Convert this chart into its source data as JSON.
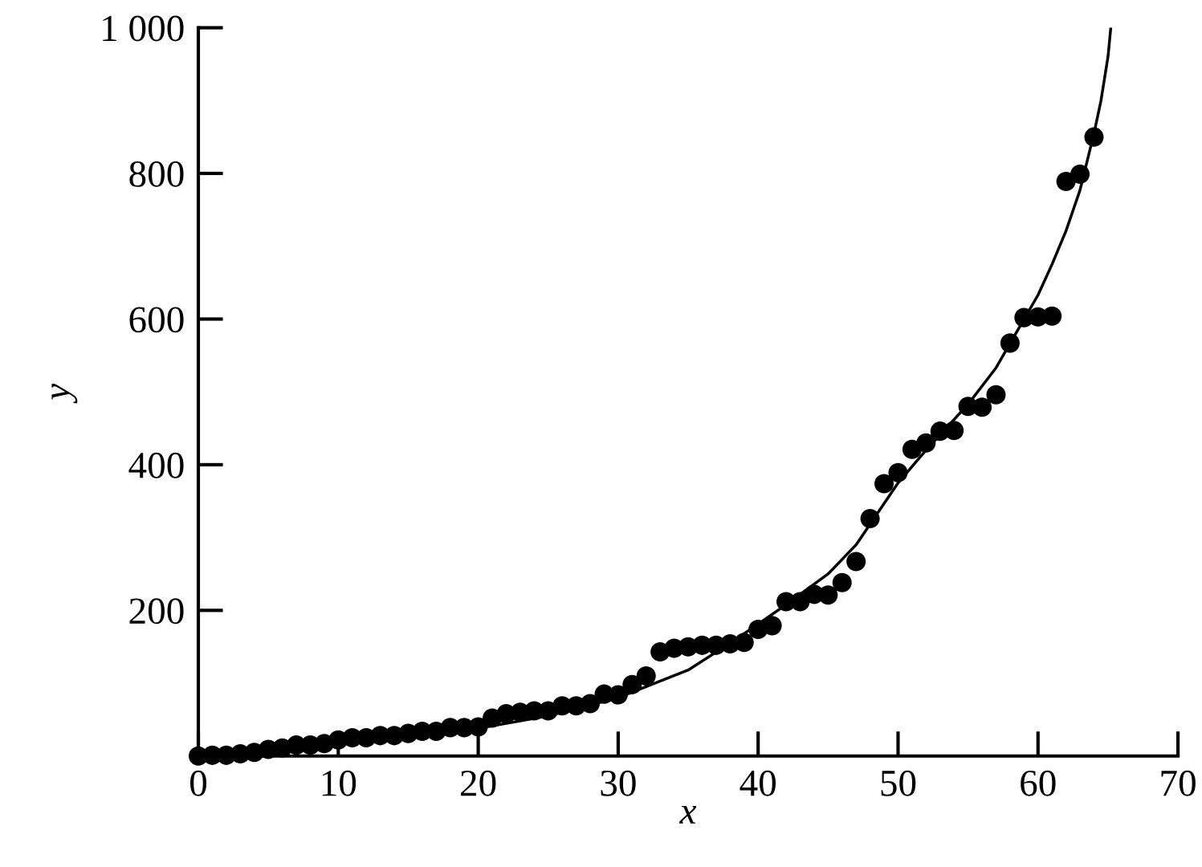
{
  "chart_data": {
    "type": "scatter",
    "xlabel": "x",
    "ylabel": "y",
    "xlim": [
      0,
      70
    ],
    "ylim": [
      0,
      1000
    ],
    "xticks": [
      0,
      10,
      20,
      30,
      40,
      50,
      60,
      70
    ],
    "yticks": [
      200,
      400,
      600,
      800,
      {
        "value": 1000,
        "label": "1 000"
      }
    ],
    "grid": false,
    "series": [
      {
        "color": "#000000",
        "marker": "circle",
        "x": [
          0,
          1,
          2,
          3,
          4,
          5,
          6,
          7,
          8,
          9,
          10,
          11,
          12,
          13,
          14,
          15,
          16,
          17,
          18,
          19,
          20,
          21,
          22,
          23,
          24,
          25,
          26,
          27,
          28,
          29,
          30,
          31,
          32,
          33,
          34,
          35,
          36,
          37,
          38,
          39,
          40,
          41,
          42,
          43,
          44,
          45,
          46,
          47,
          48,
          49,
          50,
          51,
          52,
          53,
          54,
          55,
          56,
          57,
          58,
          59,
          60,
          61,
          62,
          63,
          64
        ],
        "values": [
          0,
          1,
          1,
          3,
          5,
          9,
          11,
          15,
          15,
          17,
          22,
          25,
          25,
          28,
          28,
          31,
          34,
          34,
          39,
          39,
          40,
          52,
          58,
          60,
          62,
          62,
          69,
          69,
          72,
          85,
          84,
          98,
          110,
          143,
          148,
          150,
          152,
          152,
          154,
          156,
          174,
          179,
          212,
          212,
          222,
          221,
          238,
          267,
          326,
          374,
          389,
          421,
          430,
          446,
          447,
          480,
          479,
          496,
          567,
          602,
          603,
          604,
          789,
          799,
          850
        ]
      },
      {
        "type": "line",
        "color": "#000000",
        "line_style": "solid",
        "marker": "none",
        "x": [
          0,
          10,
          20,
          25,
          30,
          35,
          38,
          40,
          42,
          45,
          47,
          50,
          52,
          55,
          57,
          60,
          61,
          62,
          63,
          64,
          64.5,
          65,
          65.2
        ],
        "values": [
          5,
          18,
          38,
          55,
          80,
          118,
          155,
          181,
          208,
          250,
          290,
          375,
          420,
          483,
          533,
          633,
          675,
          721,
          777,
          855,
          900,
          960,
          1000
        ]
      }
    ]
  }
}
